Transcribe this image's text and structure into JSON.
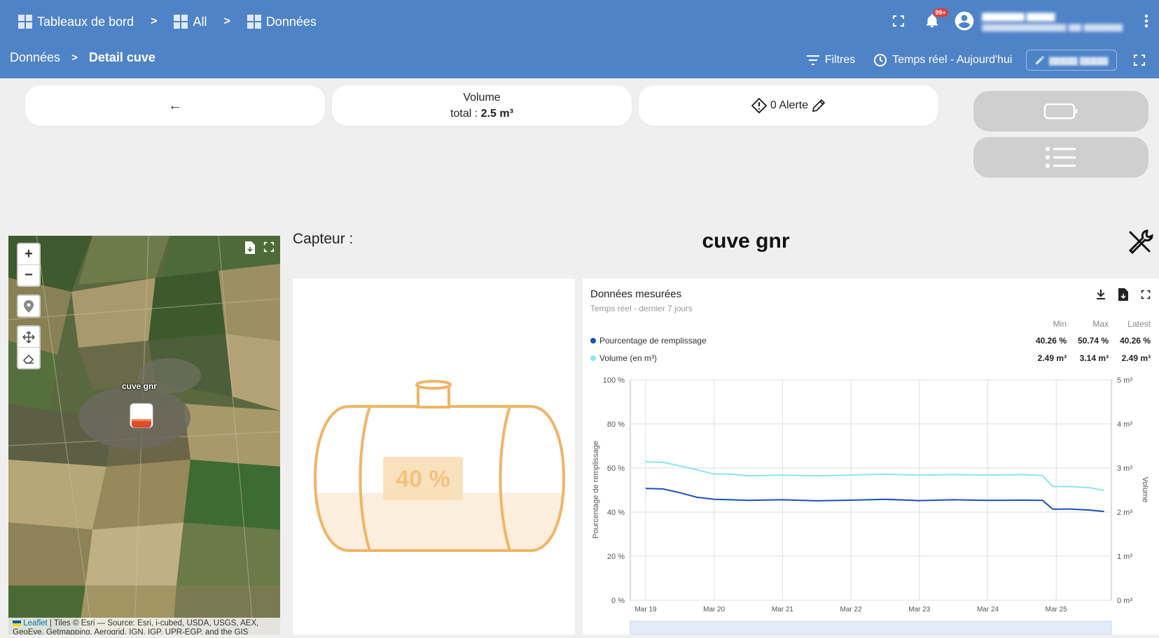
{
  "header": {
    "breadcrumb_top": [
      {
        "label": "Tableaux de bord"
      },
      {
        "label": "All"
      },
      {
        "label": "Données"
      }
    ],
    "breadcrumb_sep": ">",
    "notifications_badge": "99+",
    "breadcrumb_sub": {
      "parent": "Données",
      "current": "Detail cuve"
    },
    "filters_label": "Filtres",
    "time_label": "Temps réel - Aujourd'hui"
  },
  "toolbar": {
    "back_arrow": "←",
    "volume_title": "Volume",
    "volume_total_prefix": "total : ",
    "volume_total_value": "2.5 m³",
    "alert_label": "0 Alerte"
  },
  "map": {
    "zoom_in": "+",
    "zoom_out": "−",
    "marker_label": "cuve gnr",
    "attribution_link": "Leaflet",
    "attribution_text": " | Tiles © Esri — Source: Esri, i-cubed, USDA, USGS, AEX, GeoEye, Getmapping, Aerogrid, IGN, IGP, UPR-EGP, and the GIS"
  },
  "sensor": {
    "label": "Capteur :",
    "name": "cuve gnr",
    "fill_percent": 40,
    "fill_label": "40 %"
  },
  "colors": {
    "header_bg": "#4f83c8",
    "tank_stroke": "#f0b566",
    "series_fill": "#1a4fbf",
    "series_volume": "#8de4f0"
  },
  "chart_panel": {
    "title": "Données mesurées",
    "subtitle": "Temps réel - dernier 7 jours",
    "stat_headers": [
      "Min",
      "Max",
      "Latest"
    ],
    "rows": [
      {
        "name": "Pourcentage de remplissage",
        "min": "40.26 %",
        "max": "50.74 %",
        "latest": "40.26 %",
        "color": "#1a4fbf"
      },
      {
        "name": "Volume (en m³)",
        "min": "2.49 m³",
        "max": "3.14 m³",
        "latest": "2.49 m³",
        "color": "#8de4f0"
      }
    ]
  },
  "chart_data": {
    "type": "line",
    "x_ticks": [
      "Mar 19",
      "Mar 20",
      "Mar 21",
      "Mar 22",
      "Mar 23",
      "Mar 24",
      "Mar 25"
    ],
    "ylabel_left": "Pourcentage de remplissage",
    "ylabel_right": "Volume",
    "ylim_left": [
      0,
      100
    ],
    "ylim_right": [
      0,
      5
    ],
    "yticks_left": [
      "0 %",
      "20 %",
      "40 %",
      "60 %",
      "80 %",
      "100 %"
    ],
    "yticks_right": [
      "0 m³",
      "1 m³",
      "2 m³",
      "3 m³",
      "4 m³",
      "5 m³"
    ],
    "grid": true,
    "series": [
      {
        "name": "Pourcentage de remplissage",
        "axis": "left",
        "x": [
          0,
          0.25,
          0.5,
          0.75,
          1,
          1.25,
          1.5,
          2,
          2.5,
          3,
          3.5,
          4,
          4.5,
          5,
          5.5,
          5.8,
          5.95,
          6.2,
          6.5,
          6.7
        ],
        "values": [
          50.7,
          50.5,
          48.8,
          46.7,
          45.8,
          45.6,
          45.3,
          45.6,
          45.1,
          45.4,
          45.8,
          45.2,
          45.6,
          45.3,
          45.4,
          45.3,
          41.3,
          41.4,
          40.9,
          40.3
        ]
      },
      {
        "name": "Volume (en m³)",
        "axis": "right",
        "x": [
          0,
          0.25,
          0.5,
          0.75,
          1,
          1.25,
          1.5,
          2,
          2.5,
          3,
          3.5,
          4,
          4.5,
          5,
          5.5,
          5.8,
          5.95,
          6.2,
          6.5,
          6.7
        ],
        "values": [
          3.14,
          3.13,
          3.05,
          2.96,
          2.86,
          2.86,
          2.82,
          2.84,
          2.82,
          2.84,
          2.86,
          2.84,
          2.85,
          2.84,
          2.85,
          2.83,
          2.58,
          2.58,
          2.55,
          2.49
        ]
      }
    ]
  }
}
